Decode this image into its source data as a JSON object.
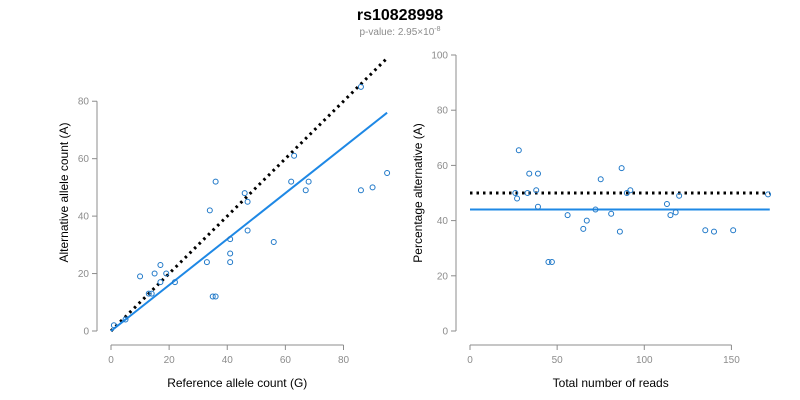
{
  "title": "rs10828998",
  "subtitle_prefix": "p-value: 2.95×10",
  "subtitle_exponent": "-8",
  "chart_data": [
    {
      "type": "scatter",
      "xlabel": "Reference allele count (G)",
      "ylabel": "Alternative allele count (A)",
      "xlim": [
        0,
        96
      ],
      "ylim": [
        0,
        86
      ],
      "xticks": [
        0,
        20,
        40,
        60,
        80
      ],
      "yticks": [
        0,
        20,
        40,
        60,
        80
      ],
      "points": [
        [
          1,
          2
        ],
        [
          5,
          4
        ],
        [
          10,
          19
        ],
        [
          13,
          13
        ],
        [
          14,
          13
        ],
        [
          15,
          20
        ],
        [
          17,
          23
        ],
        [
          17,
          17
        ],
        [
          19,
          20
        ],
        [
          22,
          17
        ],
        [
          33,
          24
        ],
        [
          34,
          42
        ],
        [
          35,
          12
        ],
        [
          36,
          12
        ],
        [
          36,
          52
        ],
        [
          41,
          24
        ],
        [
          41,
          27
        ],
        [
          41,
          32
        ],
        [
          46,
          48
        ],
        [
          47,
          35
        ],
        [
          47,
          45
        ],
        [
          56,
          31
        ],
        [
          62,
          52
        ],
        [
          63,
          61
        ],
        [
          67,
          49
        ],
        [
          68,
          52
        ],
        [
          86,
          49
        ],
        [
          86,
          85
        ],
        [
          90,
          50
        ],
        [
          95,
          55
        ]
      ],
      "fit_line": [
        [
          0,
          0
        ],
        [
          95,
          76
        ]
      ],
      "reference_line": [
        [
          0,
          0
        ],
        [
          95,
          95
        ]
      ]
    },
    {
      "type": "scatter",
      "xlabel": "Total number of reads",
      "ylabel": "Percentage alternative (A)",
      "xlim": [
        0,
        175
      ],
      "ylim": [
        0,
        100
      ],
      "xticks": [
        0,
        50,
        100,
        150
      ],
      "yticks": [
        0,
        20,
        40,
        60,
        80,
        100
      ],
      "points": [
        [
          26,
          50
        ],
        [
          27,
          48
        ],
        [
          28,
          65.5
        ],
        [
          33,
          50
        ],
        [
          34,
          57
        ],
        [
          38,
          51
        ],
        [
          39,
          57
        ],
        [
          39,
          45
        ],
        [
          45,
          25
        ],
        [
          47,
          25
        ],
        [
          56,
          42
        ],
        [
          65,
          37
        ],
        [
          67,
          40
        ],
        [
          72,
          44
        ],
        [
          75,
          55
        ],
        [
          81,
          42.5
        ],
        [
          86,
          36
        ],
        [
          87,
          59
        ],
        [
          90,
          50
        ],
        [
          92,
          51
        ],
        [
          113,
          46
        ],
        [
          115,
          42
        ],
        [
          118,
          43
        ],
        [
          120,
          49
        ],
        [
          135,
          36.5
        ],
        [
          140,
          36
        ],
        [
          151,
          36.5
        ],
        [
          171,
          49.5
        ]
      ],
      "fit_line": [
        [
          0,
          44
        ],
        [
          172,
          44
        ]
      ],
      "reference_line": [
        [
          0,
          50
        ],
        [
          172,
          50
        ]
      ]
    }
  ]
}
